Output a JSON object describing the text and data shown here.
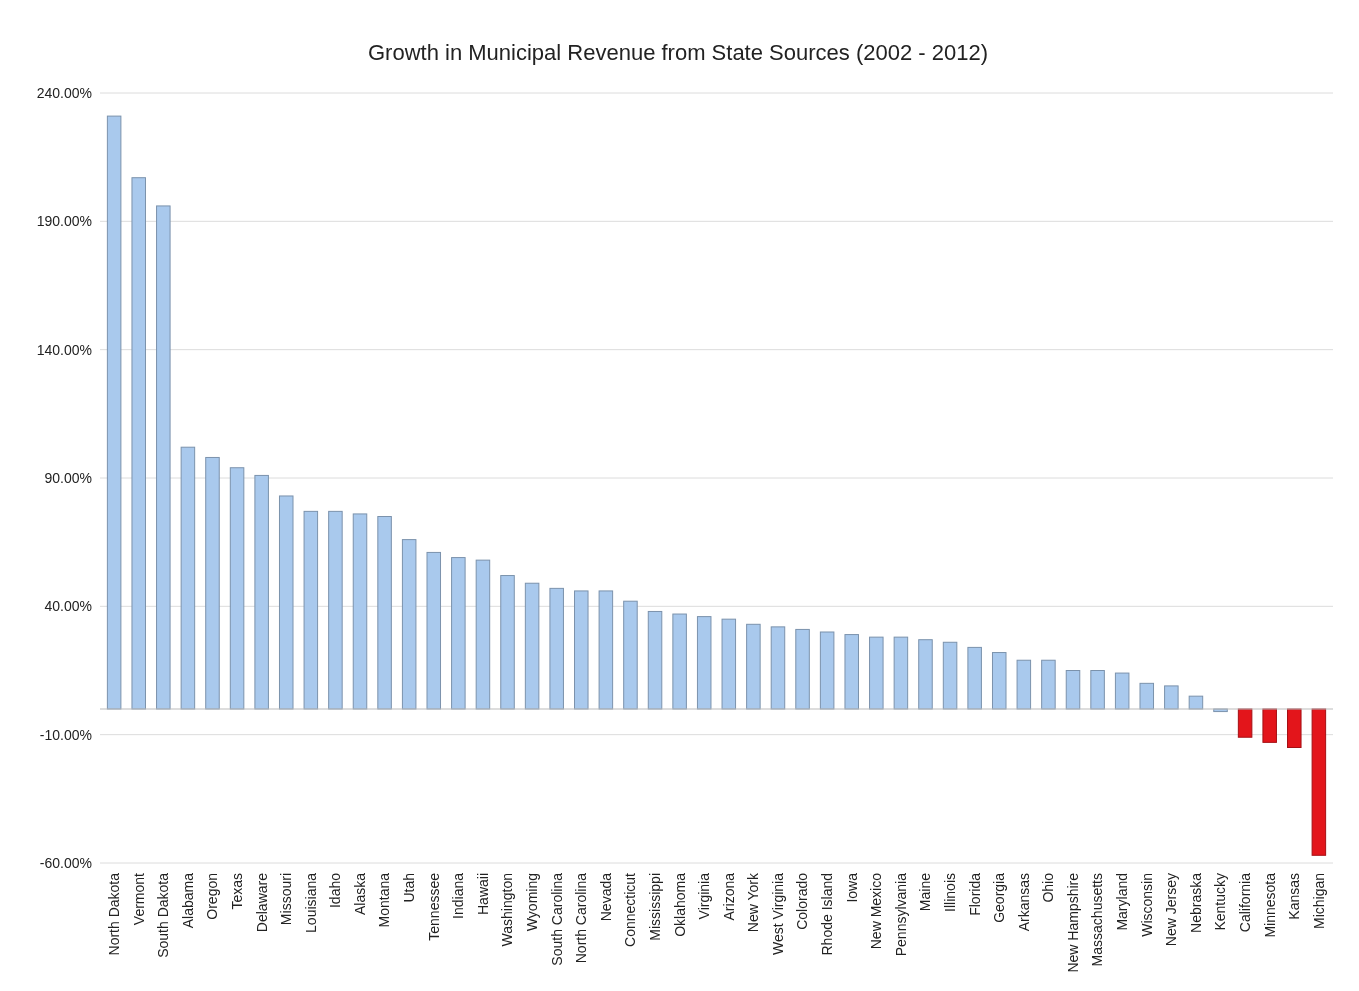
{
  "chart_data": {
    "type": "bar",
    "title": "Growth in Municipal Revenue from State Sources (2002 - 2012)",
    "categories": [
      "North Dakota",
      "Vermont",
      "South Dakota",
      "Alabama",
      "Oregon",
      "Texas",
      "Delaware",
      "Missouri",
      "Louisiana",
      "Idaho",
      "Alaska",
      "Montana",
      "Utah",
      "Tennessee",
      "Indiana",
      "Hawaii",
      "Washington",
      "Wyoming",
      "South Carolina",
      "North Carolina",
      "Nevada",
      "Connecticut",
      "Mississippi",
      "Oklahoma",
      "Virginia",
      "Arizona",
      "New York",
      "West Virginia",
      "Colorado",
      "Rhode Island",
      "Iowa",
      "New Mexico",
      "Pennsylvania",
      "Maine",
      "Illinois",
      "Florida",
      "Georgia",
      "Arkansas",
      "Ohio",
      "New Hampshire",
      "Massachusetts",
      "Maryland",
      "Wisconsin",
      "New Jersey",
      "Nebraska",
      "Kentucky",
      "California",
      "Minnesota",
      "Kansas",
      "Michigan"
    ],
    "values": [
      231,
      207,
      196,
      102,
      98,
      94,
      91,
      83,
      77,
      77,
      76,
      75,
      66,
      61,
      59,
      58,
      52,
      49,
      47,
      46,
      46,
      42,
      38,
      37,
      36,
      35,
      33,
      32,
      31,
      30,
      29,
      28,
      28,
      27,
      26,
      24,
      22,
      19,
      19,
      15,
      15,
      14,
      10,
      9,
      5,
      -1,
      -11,
      -13,
      -15,
      -57
    ],
    "colors": [
      "#a9c9ed",
      "#a9c9ed",
      "#a9c9ed",
      "#a9c9ed",
      "#a9c9ed",
      "#a9c9ed",
      "#a9c9ed",
      "#a9c9ed",
      "#a9c9ed",
      "#a9c9ed",
      "#a9c9ed",
      "#a9c9ed",
      "#a9c9ed",
      "#a9c9ed",
      "#a9c9ed",
      "#a9c9ed",
      "#a9c9ed",
      "#a9c9ed",
      "#a9c9ed",
      "#a9c9ed",
      "#a9c9ed",
      "#a9c9ed",
      "#a9c9ed",
      "#a9c9ed",
      "#a9c9ed",
      "#a9c9ed",
      "#a9c9ed",
      "#a9c9ed",
      "#a9c9ed",
      "#a9c9ed",
      "#a9c9ed",
      "#a9c9ed",
      "#a9c9ed",
      "#a9c9ed",
      "#a9c9ed",
      "#a9c9ed",
      "#a9c9ed",
      "#a9c9ed",
      "#a9c9ed",
      "#a9c9ed",
      "#a9c9ed",
      "#a9c9ed",
      "#a9c9ed",
      "#a9c9ed",
      "#a9c9ed",
      "#a9c9ed",
      "#e3151b",
      "#e3151b",
      "#e3151b",
      "#e3151b"
    ],
    "ylim": [
      -60,
      240
    ],
    "yticks": [
      {
        "value": 240,
        "label": "240.00%"
      },
      {
        "value": 190,
        "label": "190.00%"
      },
      {
        "value": 140,
        "label": "140.00%"
      },
      {
        "value": 90,
        "label": "90.00%"
      },
      {
        "value": 40,
        "label": "40.00%"
      },
      {
        "value": -10,
        "label": "-10.00%"
      },
      {
        "value": -60,
        "label": "-60.00%"
      }
    ],
    "grid": "y"
  }
}
